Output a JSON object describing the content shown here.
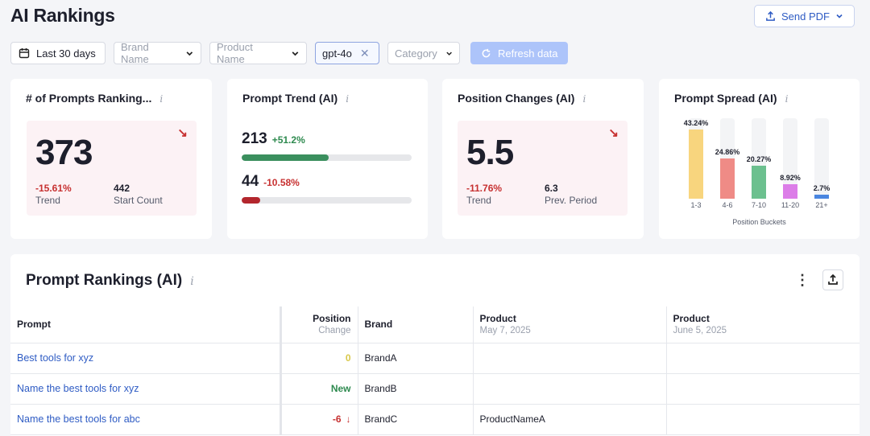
{
  "header": {
    "title": "AI Rankings",
    "send_pdf_label": "Send PDF"
  },
  "filters": {
    "date_range": "Last 30 days",
    "brand_placeholder": "Brand Name",
    "product_placeholder": "Product Name",
    "model_chip": "gpt-4o",
    "category_placeholder": "Category",
    "refresh_label": "Refresh data"
  },
  "cards": {
    "prompts_ranking": {
      "title": "# of Prompts Ranking...",
      "value": "373",
      "trend": "-15.61%",
      "trend_label": "Trend",
      "start_count": "442",
      "start_count_label": "Start Count"
    },
    "prompt_trend": {
      "title": "Prompt Trend (AI)",
      "rows": [
        {
          "value": "213",
          "change": "+51.2%",
          "bar_fraction": 0.51,
          "color": "#3b8f5e"
        },
        {
          "value": "44",
          "change": "-10.58%",
          "bar_fraction": 0.11,
          "color": "#b3262d"
        }
      ]
    },
    "position_changes": {
      "title": "Position Changes (AI)",
      "value": "5.5",
      "trend": "-11.76%",
      "trend_label": "Trend",
      "prev_period": "6.3",
      "prev_period_label": "Prev. Period"
    },
    "prompt_spread": {
      "title": "Prompt Spread (AI)",
      "axis_label": "Position Buckets"
    }
  },
  "chart_data": {
    "type": "bar",
    "categories": [
      "1-3",
      "4-6",
      "7-10",
      "11-20",
      "21+"
    ],
    "values": [
      43.24,
      24.86,
      20.27,
      8.92,
      2.7
    ],
    "value_labels": [
      "43.24%",
      "24.86%",
      "20.27%",
      "8.92%",
      "2.7%"
    ],
    "colors": [
      "#f8d57e",
      "#ef8b86",
      "#6cc08f",
      "#dc7de8",
      "#4a86e0"
    ],
    "xlabel": "Position Buckets",
    "ylim": [
      0,
      50
    ]
  },
  "table": {
    "title": "Prompt Rankings (AI)",
    "headers": {
      "prompt": "Prompt",
      "position": "Position",
      "position_sub": "Change",
      "brand": "Brand",
      "product1": "Product",
      "product1_sub": "May 7, 2025",
      "product2": "Product",
      "product2_sub": "June 5, 2025"
    },
    "rows": [
      {
        "prompt": "Best tools for xyz",
        "position": "0",
        "brand": "BrandA",
        "product1": "",
        "product2": ""
      },
      {
        "prompt": "Name the best tools for xyz",
        "position": "New",
        "brand": "BrandB",
        "product1": "",
        "product2": ""
      },
      {
        "prompt": "Name the best tools for abc",
        "position": "-6",
        "brand": "BrandC",
        "product1": "ProductNameA",
        "product2": ""
      }
    ]
  }
}
